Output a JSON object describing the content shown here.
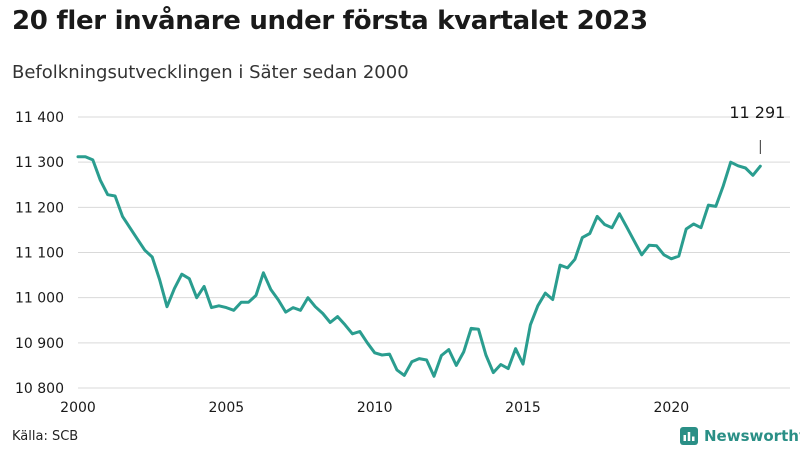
{
  "header": {
    "title": "20 fler invånare under första kvartalet 2023",
    "subtitle": "Befolkningsutvecklingen i Säter sedan 2000"
  },
  "footer": {
    "source": "Källa: SCB",
    "brand": "Newsworthy",
    "brand_icon": "bar-chart-icon"
  },
  "colors": {
    "line": "#2a9d8f",
    "grid": "#d9d9d9",
    "text": "#1a1a1a",
    "brand": "#2a8f86"
  },
  "chart_data": {
    "type": "line",
    "title": "20 fler invånare under första kvartalet 2023",
    "subtitle": "Befolkningsutvecklingen i Säter sedan 2000",
    "xlabel": "",
    "ylabel": "",
    "xlim": [
      2000,
      2023.5
    ],
    "ylim": [
      10800,
      11400
    ],
    "xticks": [
      2000,
      2005,
      2010,
      2015,
      2020
    ],
    "xtick_labels": [
      "2000",
      "2005",
      "2010",
      "2015",
      "2020"
    ],
    "yticks": [
      10800,
      10900,
      11000,
      11100,
      11200,
      11300,
      11400
    ],
    "ytick_labels": [
      "10 800",
      "10 900",
      "11 000",
      "11 100",
      "11 200",
      "11 300",
      "11 400"
    ],
    "grid": "horizontal",
    "annotation": {
      "label": "11 291",
      "x": 2023.0,
      "y": 11291
    },
    "series": [
      {
        "name": "",
        "x": [
          2000.0,
          2000.25,
          2000.5,
          2000.75,
          2001.0,
          2001.25,
          2001.5,
          2001.75,
          2002.0,
          2002.25,
          2002.5,
          2002.75,
          2003.0,
          2003.25,
          2003.5,
          2003.75,
          2004.0,
          2004.25,
          2004.5,
          2004.75,
          2005.0,
          2005.25,
          2005.5,
          2005.75,
          2006.0,
          2006.25,
          2006.5,
          2006.75,
          2007.0,
          2007.25,
          2007.5,
          2007.75,
          2008.0,
          2008.25,
          2008.5,
          2008.75,
          2009.0,
          2009.25,
          2009.5,
          2009.75,
          2010.0,
          2010.25,
          2010.5,
          2010.75,
          2011.0,
          2011.25,
          2011.5,
          2011.75,
          2012.0,
          2012.25,
          2012.5,
          2012.75,
          2013.0,
          2013.25,
          2013.5,
          2013.75,
          2014.0,
          2014.25,
          2014.5,
          2014.75,
          2015.0,
          2015.25,
          2015.5,
          2015.75,
          2016.0,
          2016.25,
          2016.5,
          2016.75,
          2017.0,
          2017.25,
          2017.5,
          2017.75,
          2018.0,
          2018.25,
          2018.5,
          2018.75,
          2019.0,
          2019.25,
          2019.5,
          2019.75,
          2020.0,
          2020.25,
          2020.5,
          2020.75,
          2021.0,
          2021.25,
          2021.5,
          2021.75,
          2022.0,
          2022.25,
          2022.5,
          2022.75,
          2023.0
        ],
        "values": [
          11312,
          11312,
          11305,
          11260,
          11228,
          11225,
          11180,
          11155,
          11130,
          11105,
          11090,
          11040,
          10980,
          11020,
          11052,
          11042,
          11000,
          11025,
          10978,
          10982,
          10978,
          10972,
          10990,
          10990,
          11005,
          11055,
          11018,
          10995,
          10968,
          10978,
          10972,
          11000,
          10980,
          10965,
          10945,
          10958,
          10940,
          10920,
          10925,
          10900,
          10878,
          10873,
          10875,
          10840,
          10828,
          10858,
          10865,
          10862,
          10826,
          10872,
          10885,
          10850,
          10880,
          10932,
          10930,
          10873,
          10834,
          10852,
          10843,
          10887,
          10853,
          10940,
          10982,
          11010,
          10996,
          11072,
          11066,
          11085,
          11133,
          11142,
          11180,
          11162,
          11155,
          11186,
          11156,
          11125,
          11095,
          11116,
          11115,
          11095,
          11086,
          11092,
          11152,
          11163,
          11155,
          11205,
          11202,
          11248,
          11300,
          11292,
          11287,
          11271,
          11291
        ]
      }
    ]
  }
}
